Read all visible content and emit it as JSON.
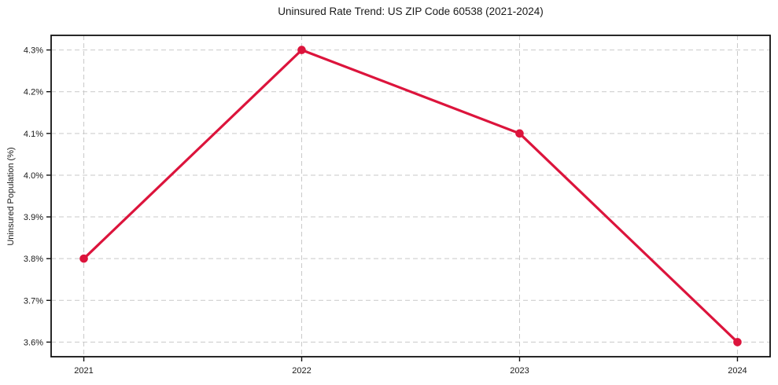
{
  "chart_data": {
    "type": "line",
    "title": "Uninsured Rate Trend: US ZIP Code 60538 (2021-2024)",
    "xlabel": "",
    "ylabel": "Uninsured Population (%)",
    "categories": [
      "2021",
      "2022",
      "2023",
      "2024"
    ],
    "x": [
      2021,
      2022,
      2023,
      2024
    ],
    "series": [
      {
        "name": "uninsured-rate",
        "values": [
          3.8,
          4.3,
          4.1,
          3.6
        ],
        "color": "#dc143c",
        "marker": "circle"
      }
    ],
    "yticks": [
      3.6,
      3.7,
      3.8,
      3.9,
      4.0,
      4.1,
      4.2,
      4.3
    ],
    "ytick_labels": [
      "3.6%",
      "3.7%",
      "3.8%",
      "3.9%",
      "4.0%",
      "4.1%",
      "4.2%",
      "4.3%"
    ],
    "ylim": [
      3.565,
      4.335
    ],
    "xlim": [
      2020.85,
      2024.15
    ],
    "grid": true,
    "grid_style": "dashed",
    "grid_color": "#c9c9c9",
    "axis_color": "#111111",
    "text_color": "#1a1a1a",
    "line_width": 3.2,
    "marker_size": 5.3,
    "legend": "none",
    "background": "#ffffff"
  }
}
